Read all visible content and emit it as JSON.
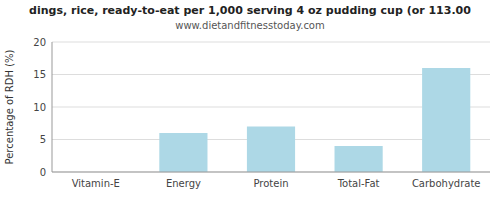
{
  "chart_data": {
    "type": "bar",
    "title": "dings, rice, ready-to-eat per 1,000 serving 4 oz pudding cup (or 113.00",
    "subtitle": "www.dietandfitnesstoday.com",
    "categories": [
      "Vitamin-E",
      "Energy",
      "Protein",
      "Total-Fat",
      "Carbohydrate"
    ],
    "values": [
      0,
      6,
      7,
      4,
      16
    ],
    "color": "#add8e6",
    "y_label": "Percentage of RDH (%)",
    "ylim": [
      0,
      20
    ],
    "yticks": [
      0,
      5,
      10,
      15,
      20
    ],
    "grid": true
  }
}
